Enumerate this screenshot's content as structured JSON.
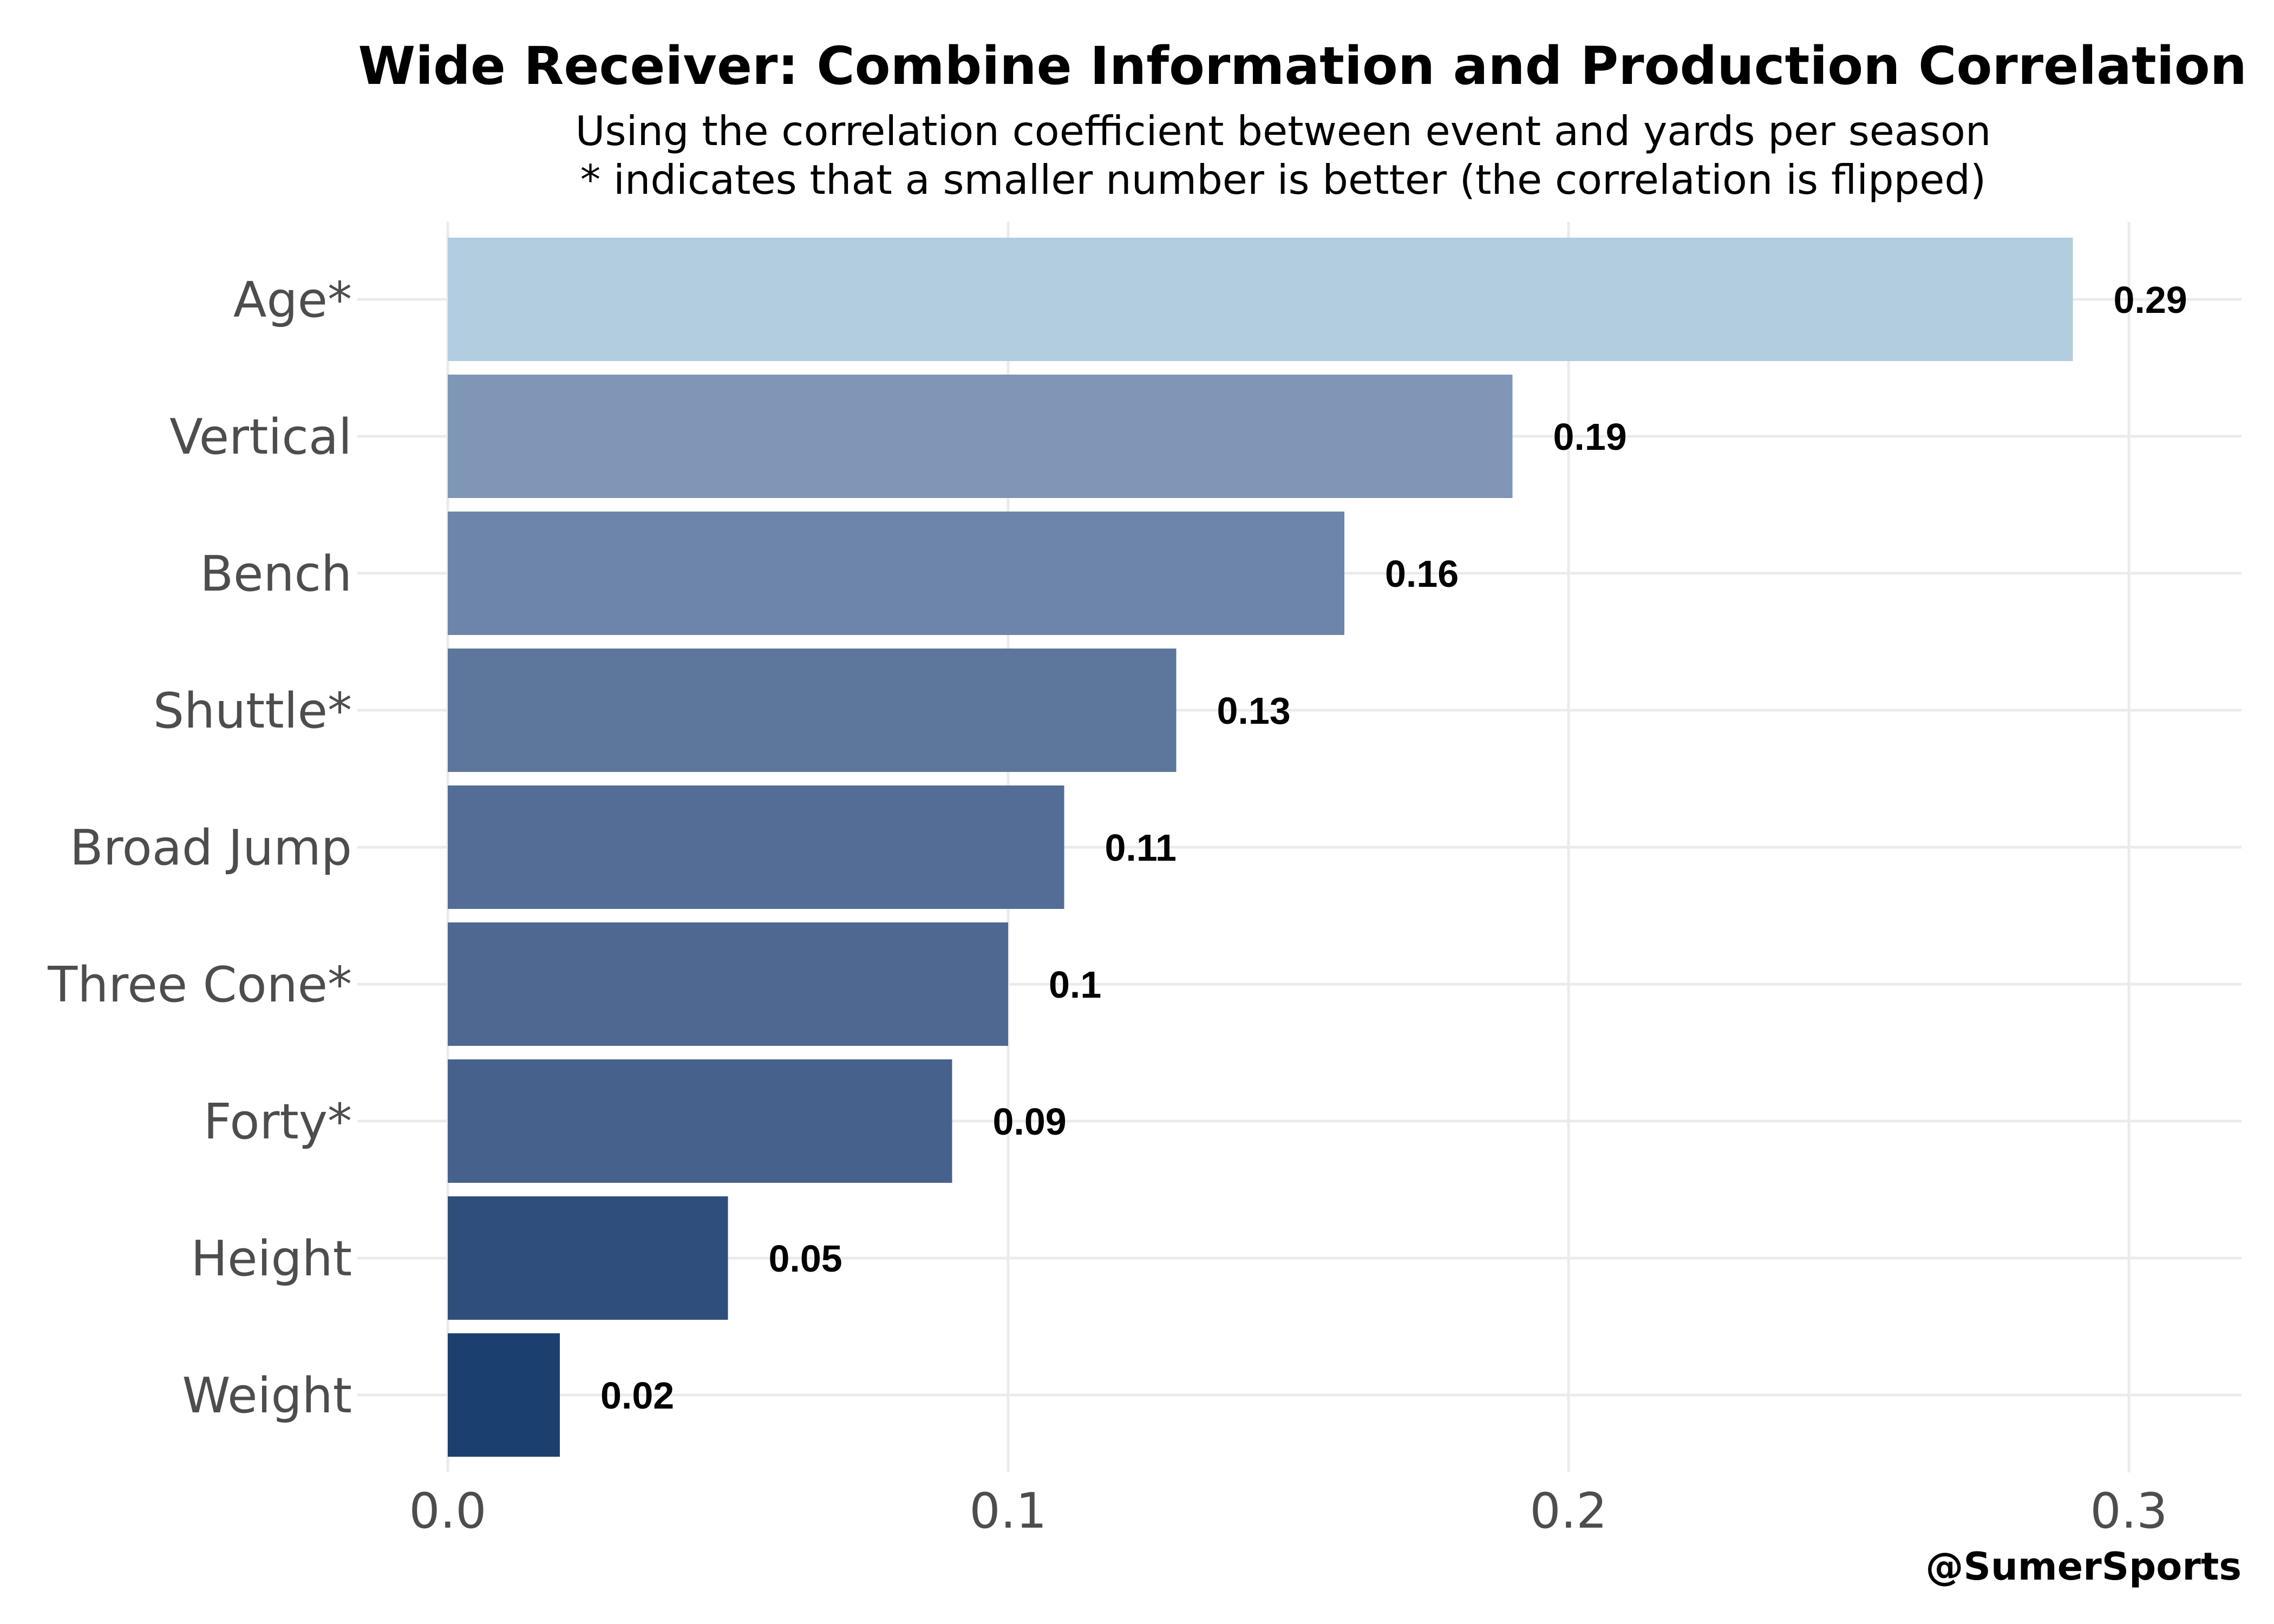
{
  "chart_data": {
    "type": "bar",
    "orientation": "horizontal",
    "title": "Wide Receiver: Combine Information and Production Correlation",
    "subtitle_lines": [
      "Using the correlation coefficient between event and yards per season",
      "* indicates that a smaller number is better (the correlation is flipped)"
    ],
    "caption": "@SumerSports",
    "categories": [
      "Age*",
      "Vertical",
      "Bench",
      "Shuttle*",
      "Broad Jump",
      "Three Cone*",
      "Forty*",
      "Height",
      "Weight"
    ],
    "values": [
      0.29,
      0.19,
      0.16,
      0.13,
      0.11,
      0.1,
      0.09,
      0.05,
      0.02
    ],
    "value_labels": [
      "0.29",
      "0.19",
      "0.16",
      "0.13",
      "0.11",
      "0.1",
      "0.09",
      "0.05",
      "0.02"
    ],
    "xlim": [
      0,
      0.32
    ],
    "xticks": [
      0.0,
      0.1,
      0.2,
      0.3
    ],
    "xtick_labels": [
      "0.0",
      "0.1",
      "0.2",
      "0.3"
    ],
    "xlabel": "",
    "ylabel": "",
    "grid": true,
    "legend": "none",
    "colors": [
      "#b3cde0",
      "#7f96b6",
      "#6d85a8",
      "#5d779c",
      "#536d96",
      "#4e6891",
      "#46628c",
      "#2f4e7b",
      "#1b4070"
    ]
  }
}
